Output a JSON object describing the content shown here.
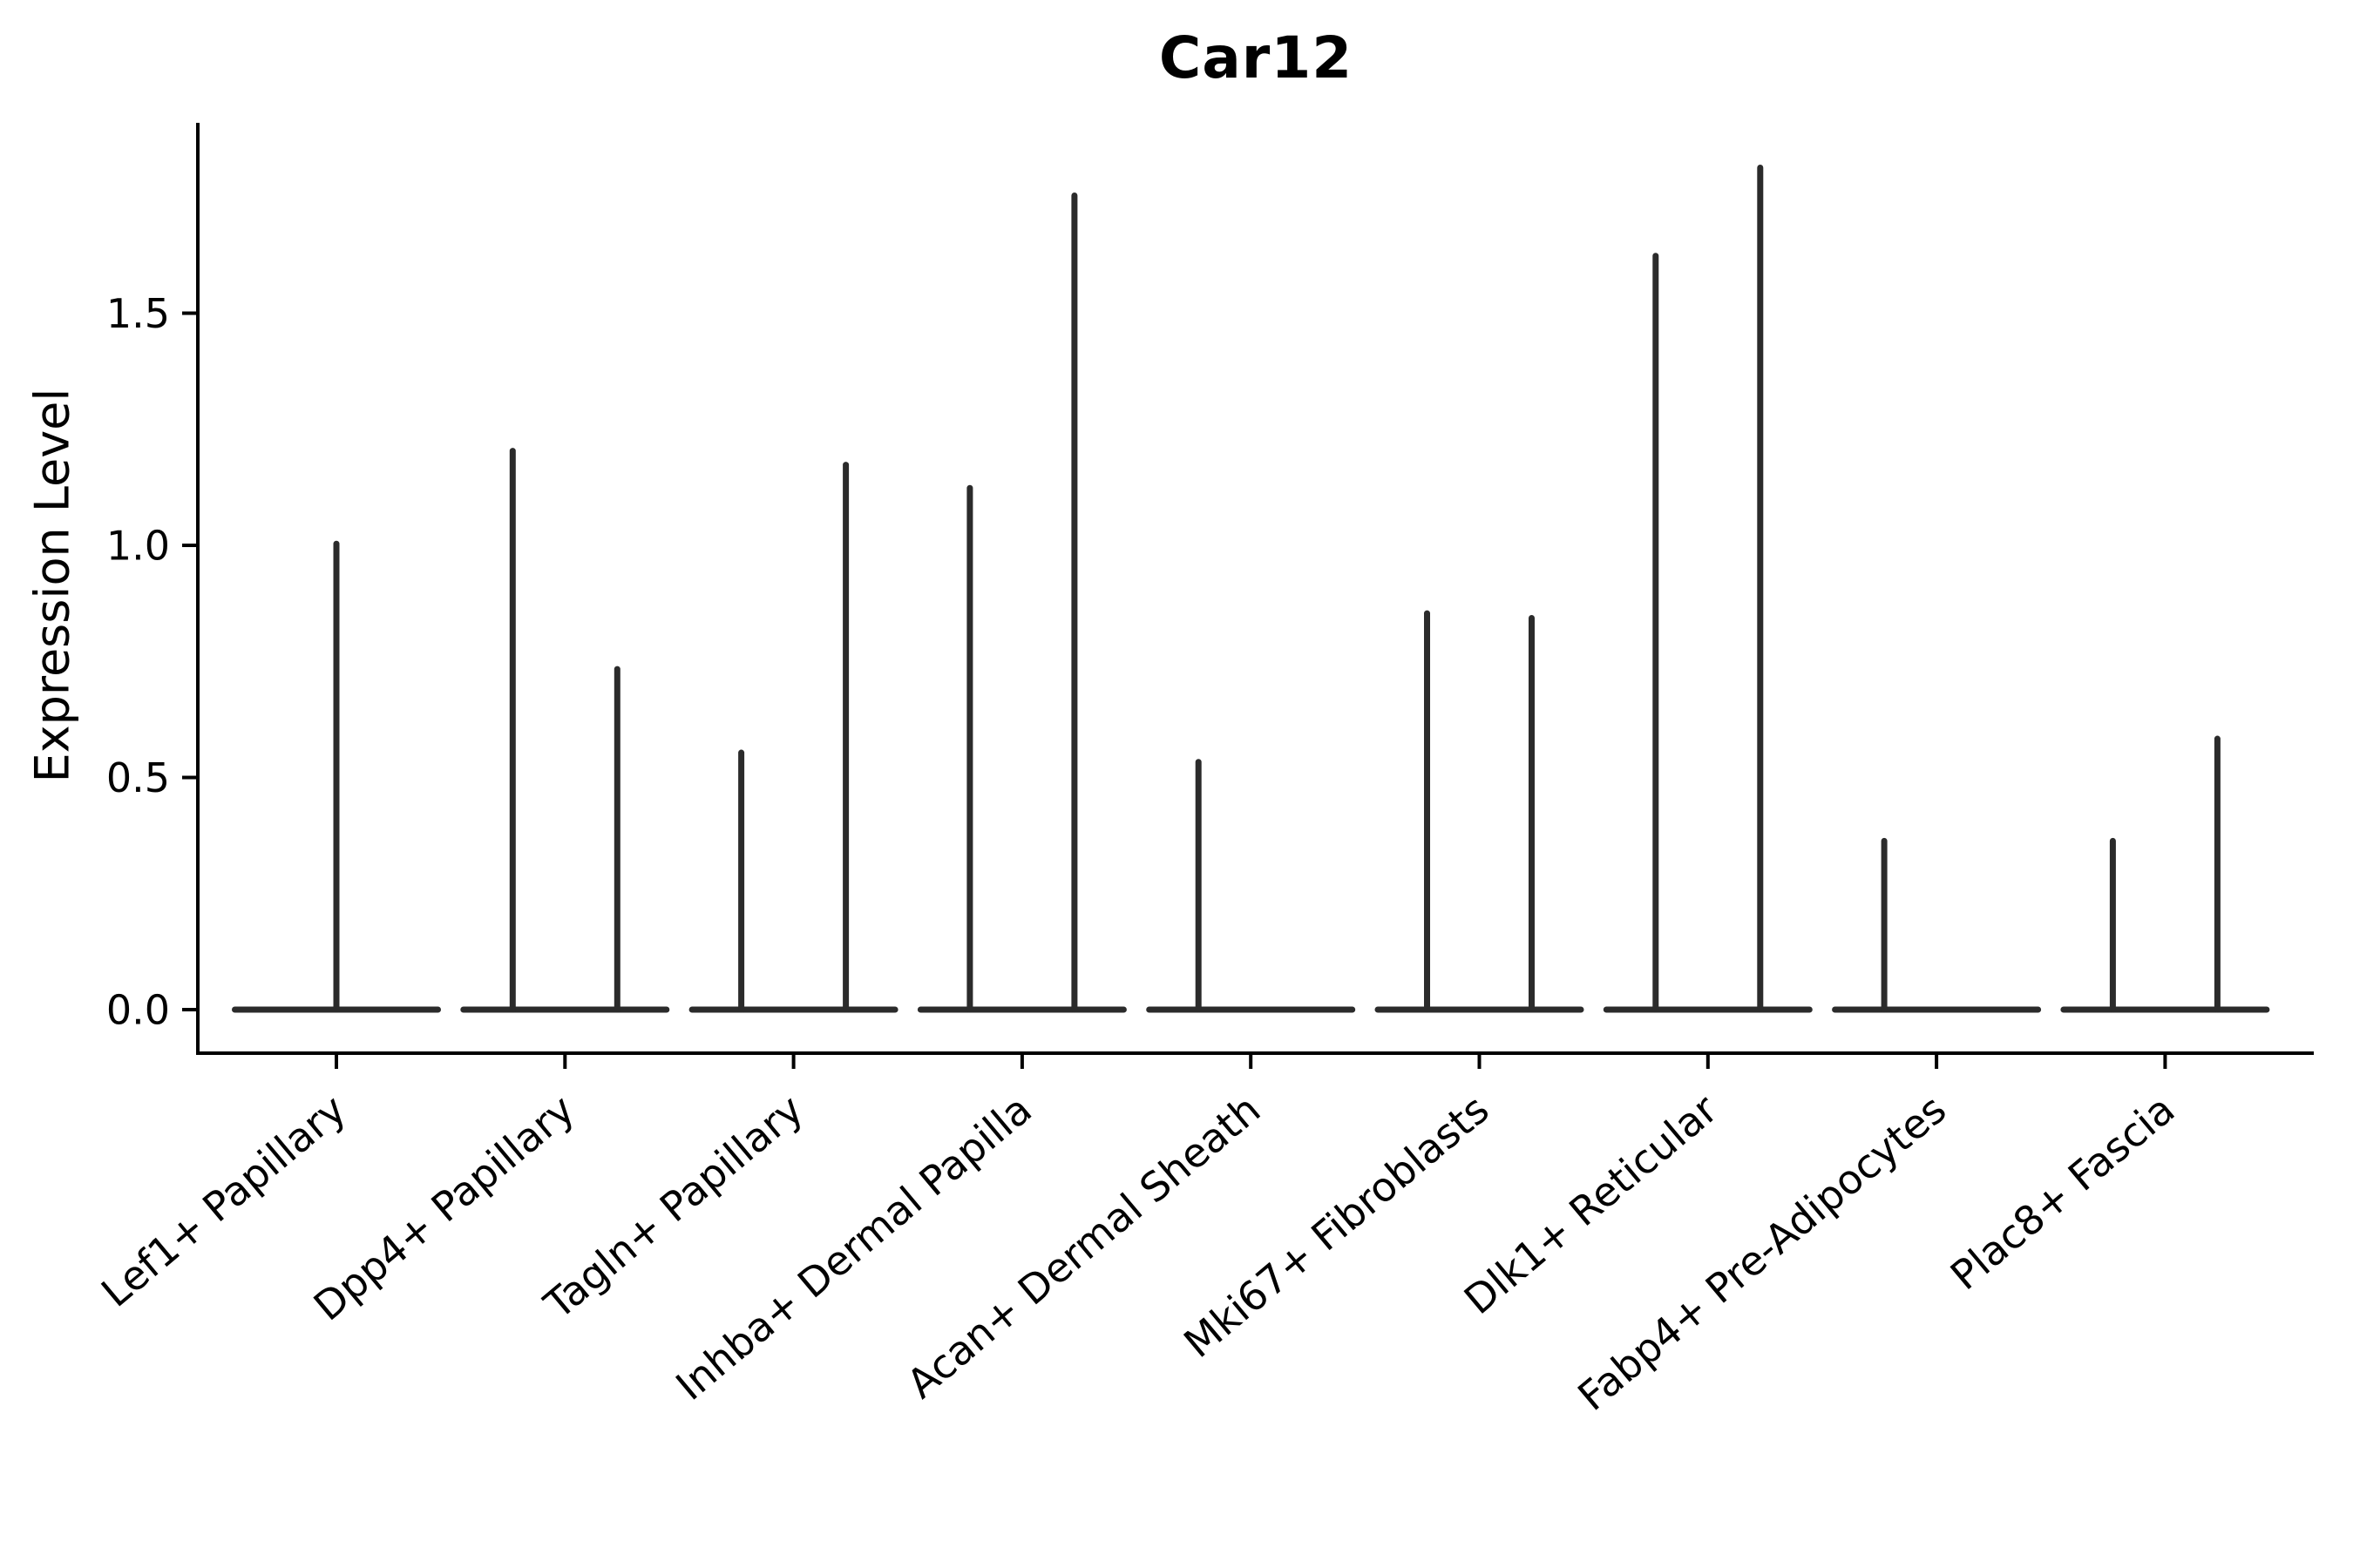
{
  "page": {
    "background": "#ffffff"
  },
  "chart_data": {
    "type": "violin",
    "title": "Car12",
    "ylabel": "Expression Level",
    "xlabel": "",
    "grid": false,
    "legend": "none",
    "violin_color": "#2b2b2b",
    "axis_color": "#000000",
    "ylim": [
      -0.09,
      1.91
    ],
    "ytick_values": [
      0.0,
      0.5,
      1.0,
      1.5
    ],
    "ytick_labels": [
      "0.0",
      "0.5",
      "1.0",
      "1.5"
    ],
    "categories": [
      "Lef1+ Papillary",
      "Dpp4+ Papillary",
      "Tagln+ Papillary",
      "Inhba+ Dermal Papilla",
      "Acan+ Dermal Sheath",
      "Mki67+ Fibroblasts",
      "Dlk1+ Reticular",
      "Fabp4+ Pre-Adipocytes",
      "Plac8+ Fascia"
    ],
    "groups": [
      {
        "category": "Lef1+ Papillary",
        "violins": [
          {
            "position": "center",
            "max": 1.01
          }
        ]
      },
      {
        "category": "Dpp4+ Papillary",
        "violins": [
          {
            "position": "left",
            "max": 1.21
          },
          {
            "position": "right",
            "max": 0.74
          }
        ]
      },
      {
        "category": "Tagln+ Papillary",
        "violins": [
          {
            "position": "left",
            "max": 0.56
          },
          {
            "position": "right",
            "max": 1.18
          }
        ]
      },
      {
        "category": "Inhba+ Dermal Papilla",
        "violins": [
          {
            "position": "left",
            "max": 1.13
          },
          {
            "position": "right",
            "max": 1.76
          }
        ]
      },
      {
        "category": "Acan+ Dermal Sheath",
        "violins": [
          {
            "position": "left",
            "max": 0.54
          },
          {
            "position": "right",
            "max": 0.0
          }
        ]
      },
      {
        "category": "Mki67+ Fibroblasts",
        "violins": [
          {
            "position": "left",
            "max": 0.86
          },
          {
            "position": "right",
            "max": 0.85
          }
        ]
      },
      {
        "category": "Dlk1+ Reticular",
        "violins": [
          {
            "position": "left",
            "max": 1.63
          },
          {
            "position": "right",
            "max": 1.82
          }
        ]
      },
      {
        "category": "Fabp4+ Pre-Adipocytes",
        "violins": [
          {
            "position": "left",
            "max": 0.37
          },
          {
            "position": "right",
            "max": 0.0
          }
        ]
      },
      {
        "category": "Plac8+ Fascia",
        "violins": [
          {
            "position": "left",
            "max": 0.37
          },
          {
            "position": "right",
            "max": 0.59
          }
        ]
      }
    ]
  }
}
